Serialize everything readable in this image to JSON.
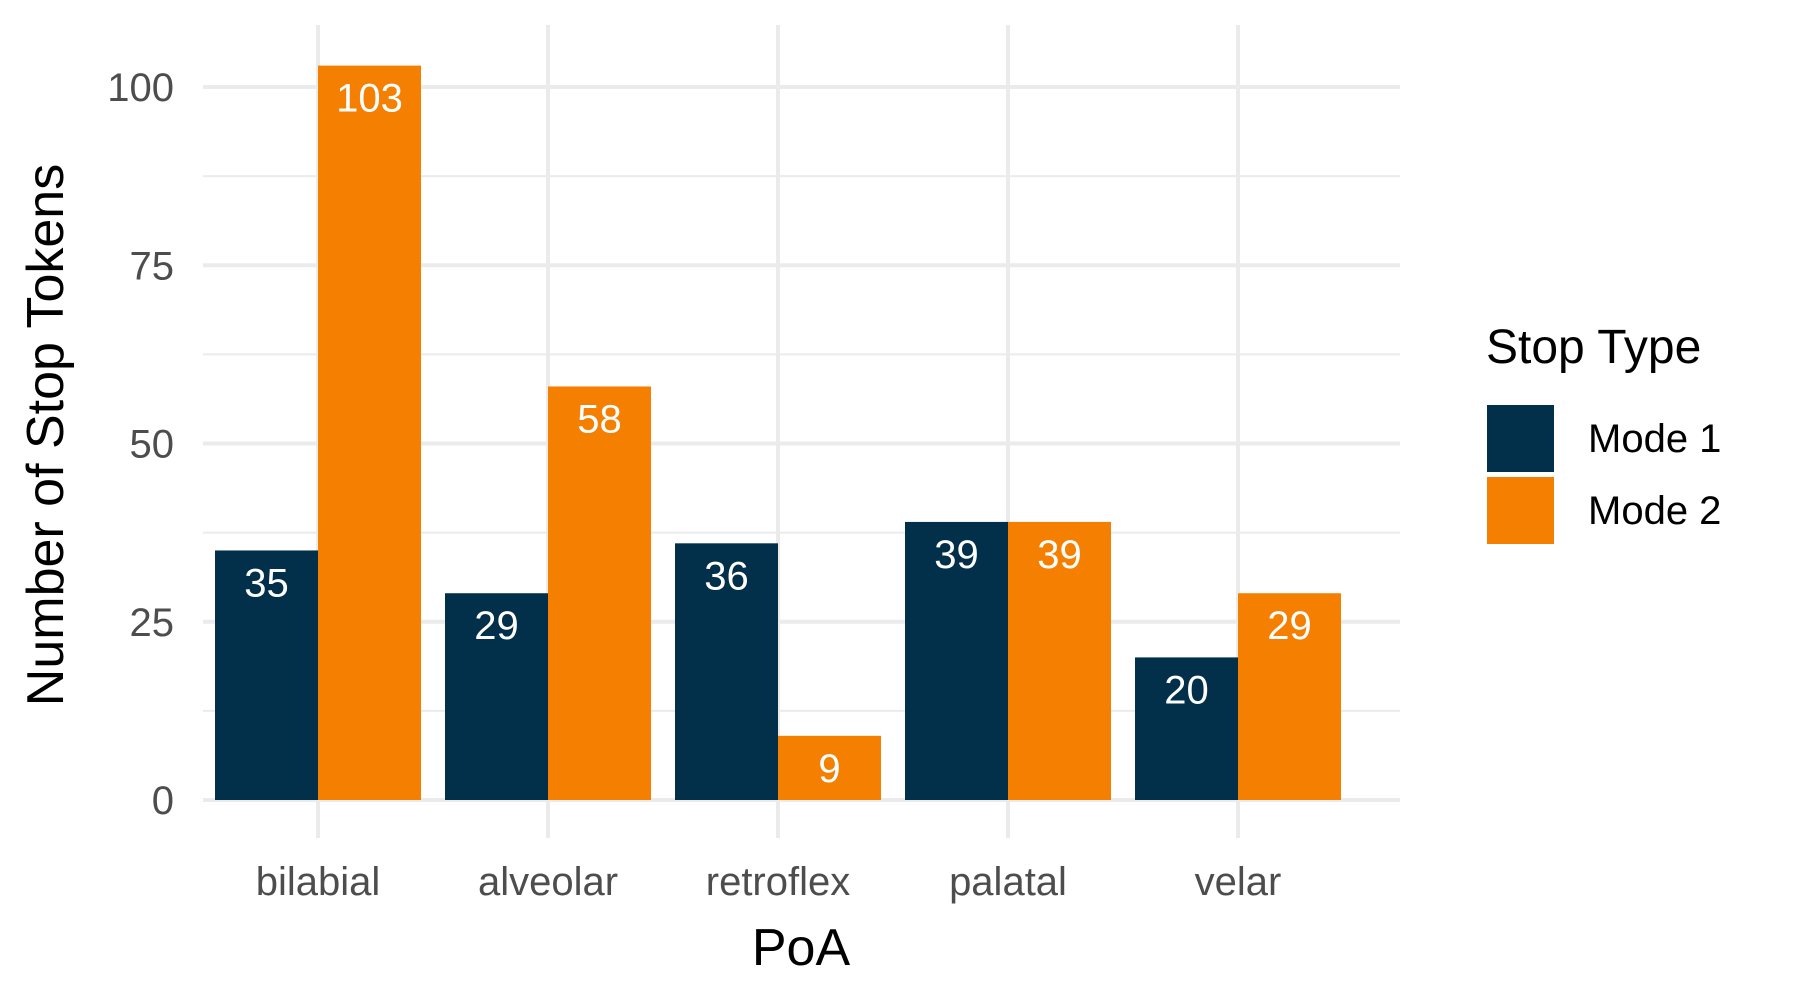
{
  "chart_data": {
    "type": "bar",
    "xlabel": "PoA",
    "ylabel": "Number of Stop Tokens",
    "categories": [
      "bilabial",
      "alveolar",
      "retroflex",
      "palatal",
      "velar"
    ],
    "series": [
      {
        "name": "Mode 1",
        "color": "#022F4A",
        "values": [
          35,
          29,
          36,
          39,
          20
        ]
      },
      {
        "name": "Mode 2",
        "color": "#F57F00",
        "values": [
          103,
          58,
          9,
          39,
          29
        ]
      }
    ],
    "ylim": [
      0,
      105
    ],
    "yticks": [
      0,
      25,
      50,
      75,
      100
    ],
    "grid": true,
    "legend": {
      "title": "Stop Type",
      "position": "right"
    }
  }
}
